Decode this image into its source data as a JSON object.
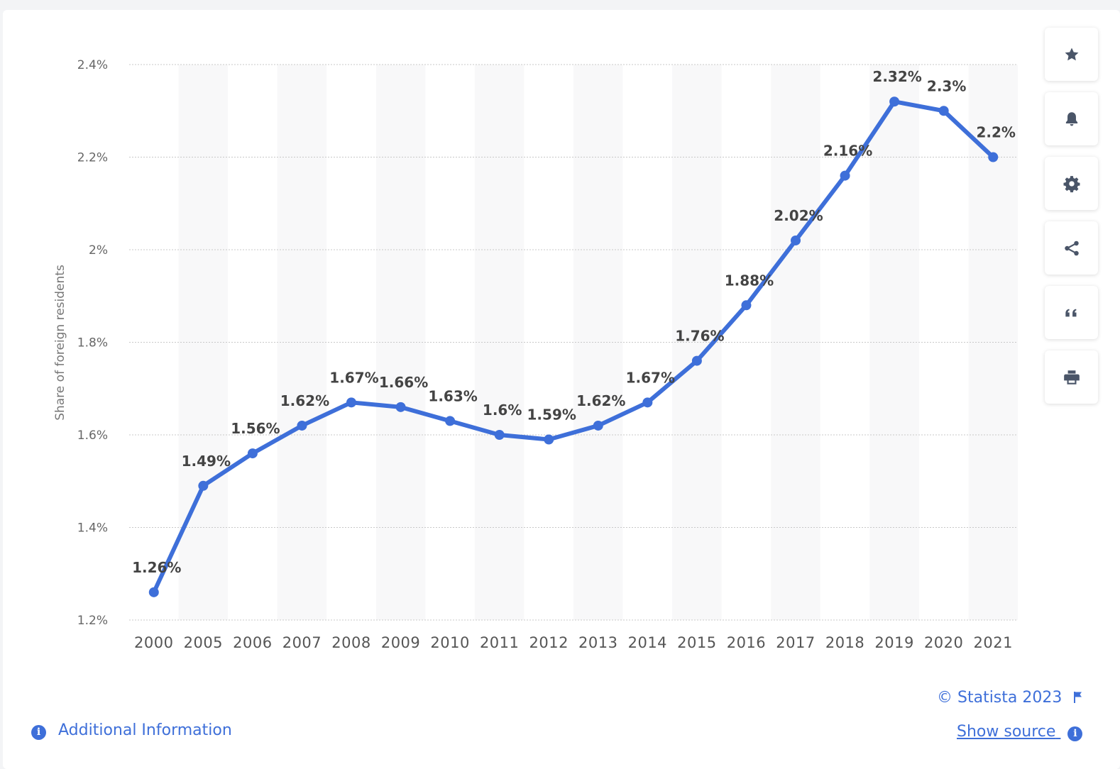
{
  "chart_data": {
    "type": "line",
    "ylabel": "Share of foreign residents",
    "ylim": [
      1.2,
      2.4
    ],
    "yticks": [
      "1.2%",
      "1.4%",
      "1.6%",
      "1.8%",
      "2%",
      "2.2%",
      "2.4%"
    ],
    "yticks_values": [
      1.2,
      1.4,
      1.6,
      1.8,
      2.0,
      2.2,
      2.4
    ],
    "categories": [
      "2000",
      "2005",
      "2006",
      "2007",
      "2008",
      "2009",
      "2010",
      "2011",
      "2012",
      "2013",
      "2014",
      "2015",
      "2016",
      "2017",
      "2018",
      "2019",
      "2020",
      "2021"
    ],
    "values": [
      1.26,
      1.49,
      1.56,
      1.62,
      1.67,
      1.66,
      1.63,
      1.6,
      1.59,
      1.62,
      1.67,
      1.76,
      1.88,
      2.02,
      2.16,
      2.32,
      2.3,
      2.2
    ],
    "data_labels": [
      "1.26%",
      "1.49%",
      "1.56%",
      "1.62%",
      "1.67%",
      "1.66%",
      "1.63%",
      "1.6%",
      "1.59%",
      "1.62%",
      "1.67%",
      "1.76%",
      "1.88%",
      "2.02%",
      "2.16%",
      "2.32%",
      "2.3%",
      "2.2%"
    ],
    "grid": true,
    "line_color": "#3e6fd9",
    "band_color": "#f8f8f9"
  },
  "sidebar": {
    "buttons": [
      {
        "icon": "star-icon"
      },
      {
        "icon": "bell-icon"
      },
      {
        "icon": "gear-icon"
      },
      {
        "icon": "share-icon"
      },
      {
        "icon": "quote-icon"
      },
      {
        "icon": "print-icon"
      }
    ]
  },
  "footer": {
    "copyright": "© Statista 2023",
    "additional_info": "Additional Information",
    "show_source": "Show source"
  },
  "colors": {
    "accent": "#3e6fd9",
    "icon": "#4a5568"
  }
}
